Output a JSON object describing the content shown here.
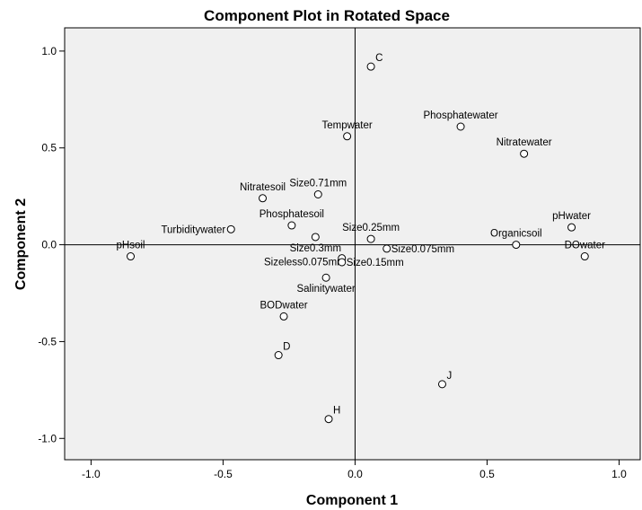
{
  "chart_data": {
    "type": "scatter",
    "title": "Component Plot in Rotated Space",
    "xlabel": "Component 1",
    "ylabel": "Component 2",
    "xlim": [
      -1.1,
      1.08
    ],
    "ylim": [
      -1.11,
      1.12
    ],
    "xticks": [
      -1.0,
      -0.5,
      0.0,
      0.5,
      1.0
    ],
    "xtick_labels": [
      "-1.0",
      "-0.5",
      "0.0",
      "0.5",
      "1.0"
    ],
    "yticks": [
      1.0,
      0.5,
      0.0,
      -0.5,
      -1.0
    ],
    "ytick_labels": [
      "1.0",
      "0.5",
      "0.0",
      "-0.5",
      "-1.0"
    ],
    "grid": false,
    "reference_lines": {
      "x": 0,
      "y": 0
    },
    "colors": {
      "background": "#f0f0f0",
      "marker": "#ffffff",
      "stroke": "#000000"
    },
    "points": [
      {
        "label": "C",
        "x": 0.06,
        "y": 0.92,
        "anchor": "upper-right"
      },
      {
        "label": "Phosphatewater",
        "x": 0.4,
        "y": 0.61,
        "anchor": "above"
      },
      {
        "label": "Tempwater",
        "x": -0.03,
        "y": 0.56,
        "anchor": "above"
      },
      {
        "label": "Nitratewater",
        "x": 0.64,
        "y": 0.47,
        "anchor": "above"
      },
      {
        "label": "Nitratesoil",
        "x": -0.35,
        "y": 0.24,
        "anchor": "above"
      },
      {
        "label": "Size0.71mm",
        "x": -0.14,
        "y": 0.26,
        "anchor": "above"
      },
      {
        "label": "Phosphatesoil",
        "x": -0.24,
        "y": 0.1,
        "anchor": "above"
      },
      {
        "label": "Turbiditywater",
        "x": -0.47,
        "y": 0.08,
        "anchor": "left"
      },
      {
        "label": "Size0.25mm",
        "x": 0.06,
        "y": 0.03,
        "anchor": "above"
      },
      {
        "label": "pHwater",
        "x": 0.82,
        "y": 0.09,
        "anchor": "above"
      },
      {
        "label": "Organicsoil",
        "x": 0.61,
        "y": 0.0,
        "anchor": "above"
      },
      {
        "label": "DOwater",
        "x": 0.87,
        "y": -0.06,
        "anchor": "above"
      },
      {
        "label": "pHsoil",
        "x": -0.85,
        "y": -0.06,
        "anchor": "above"
      },
      {
        "label": "Size0.3mm",
        "x": -0.15,
        "y": 0.04,
        "anchor": "below"
      },
      {
        "label": "Size0.075mm",
        "x": 0.12,
        "y": -0.02,
        "anchor": "right"
      },
      {
        "label": "Sizeless0.075mm",
        "x": -0.05,
        "y": -0.07,
        "anchor": "below-left"
      },
      {
        "label": "Size0.15mm",
        "x": -0.05,
        "y": -0.09,
        "anchor": "right"
      },
      {
        "label": "Salinitywater",
        "x": -0.11,
        "y": -0.17,
        "anchor": "below"
      },
      {
        "label": "BODwater",
        "x": -0.27,
        "y": -0.37,
        "anchor": "above"
      },
      {
        "label": "D",
        "x": -0.29,
        "y": -0.57,
        "anchor": "upper-right"
      },
      {
        "label": "J",
        "x": 0.33,
        "y": -0.72,
        "anchor": "upper-right"
      },
      {
        "label": "H",
        "x": -0.1,
        "y": -0.9,
        "anchor": "upper-right"
      }
    ]
  }
}
